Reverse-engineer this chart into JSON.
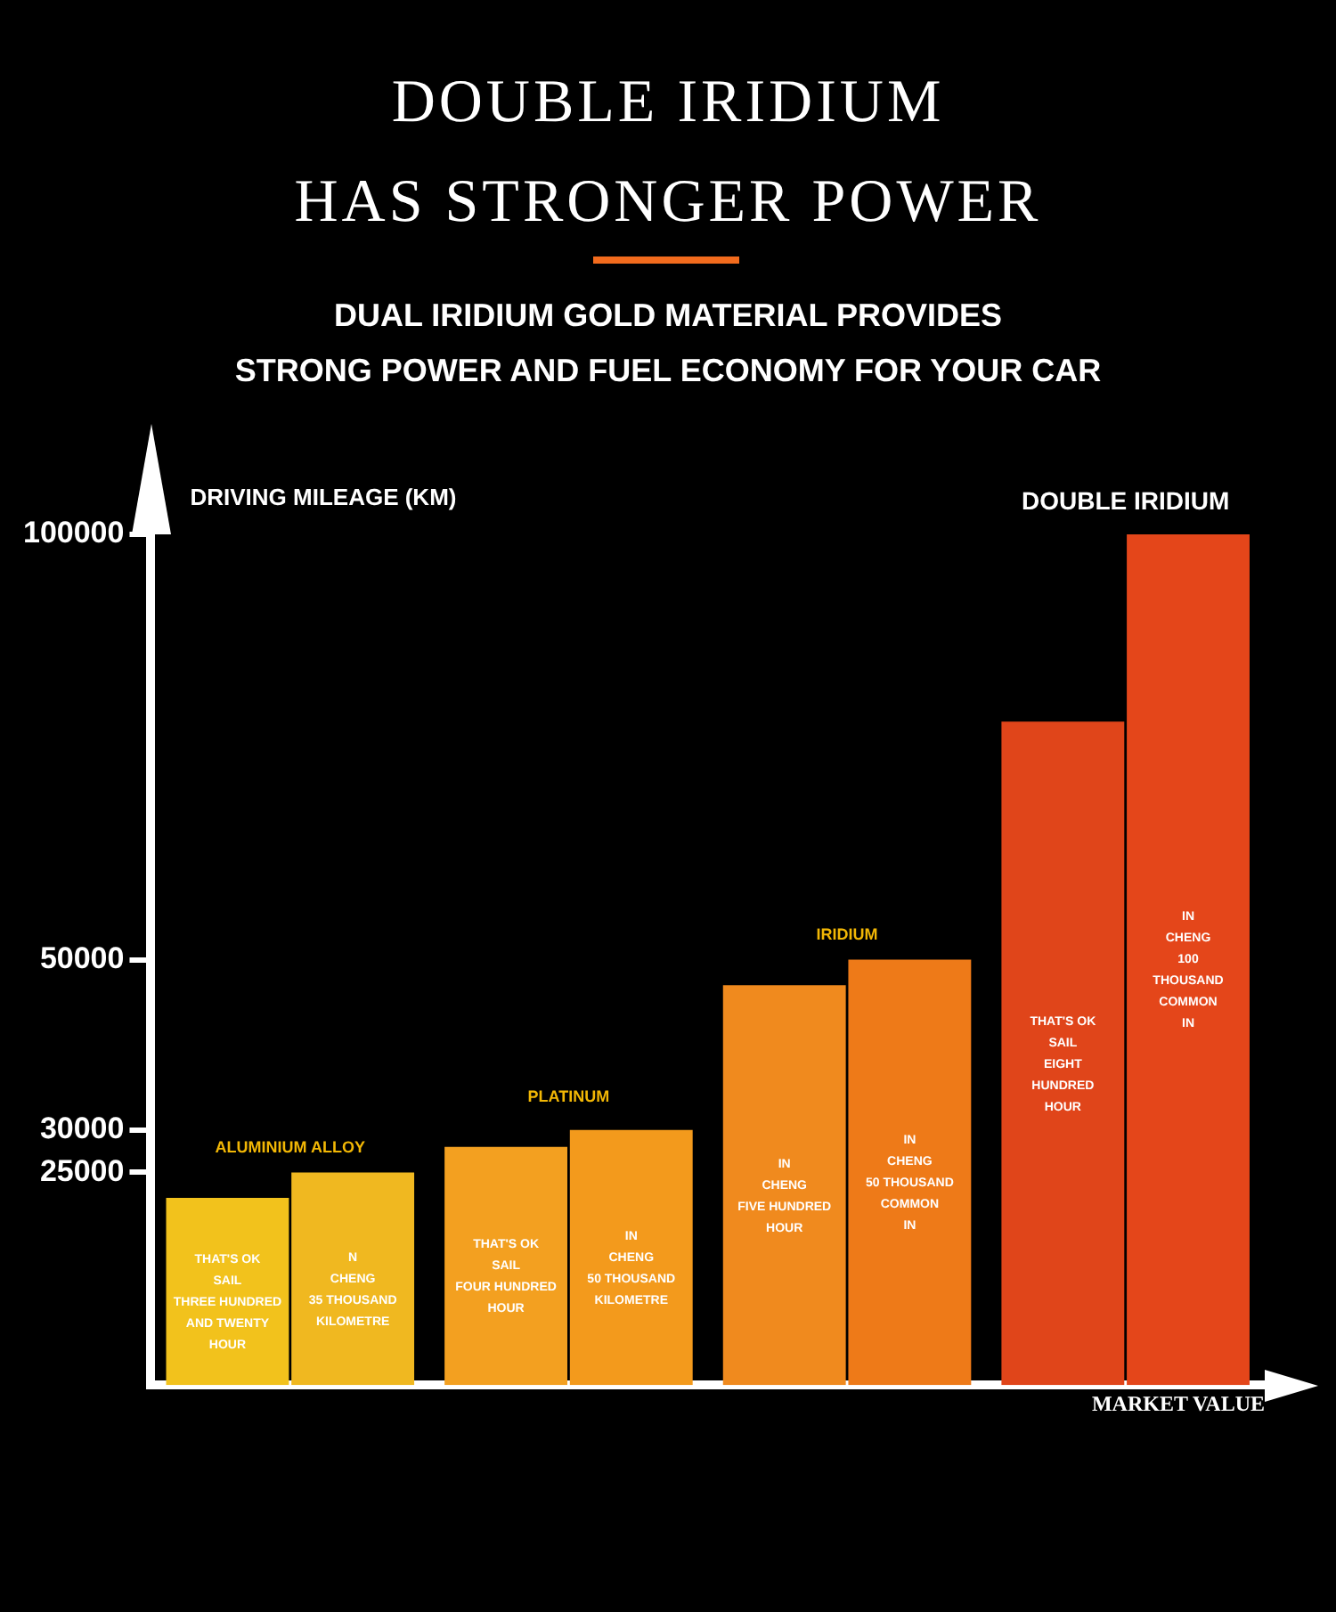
{
  "chart_data": {
    "type": "bar",
    "title": "DOUBLE IRIDIUM\nHAS STRONGER POWER",
    "subtitle": "DUAL IRIDIUM GOLD MATERIAL PROVIDES\nSTRONG POWER AND FUEL ECONOMY FOR YOUR CAR",
    "ylabel": "DRIVING MILEAGE (KM)",
    "xlabel": "MARKET VALUE",
    "categories": [
      "ALUMINIUM ALLOY",
      "PLATINUM",
      "IRIDIUM",
      "DOUBLE IRIDIUM"
    ],
    "series": [
      {
        "colors": [
          "#f2c21c",
          "#f3a020",
          "#f08a1e",
          "#e0451a"
        ],
        "values": [
          22000,
          28000,
          47000,
          78000
        ],
        "value_labels": [
          "THAT'S OK\nSAIL\nTHREE HUNDRED\nAND TWENTY\nHOUR",
          "THAT'S OK\nSAIL\nFOUR HUNDRED\nHOUR",
          "IN\nCHENG\nFIVE HUNDRED\nHOUR",
          "THAT'S OK\nSAIL\nEIGHT\nHUNDRED\nHOUR"
        ]
      },
      {
        "colors": [
          "#f0b820",
          "#f39a1c",
          "#ee7a18",
          "#e4461a"
        ],
        "values": [
          25000,
          30000,
          50000,
          100000
        ],
        "value_labels": [
          "N\nCHENG\n35 THOUSAND\nKILOMETRE",
          "IN\nCHENG\n50 THOUSAND\nKILOMETRE",
          "IN\nCHENG\n50 THOUSAND\nCOMMON\nIN",
          "IN\nCHENG\n100\nTHOUSAND\nCOMMON\nIN"
        ]
      }
    ],
    "ylim": [
      0,
      100000
    ],
    "yticks": [
      25000,
      30000,
      50000,
      100000
    ],
    "grid": false,
    "legend": false
  }
}
